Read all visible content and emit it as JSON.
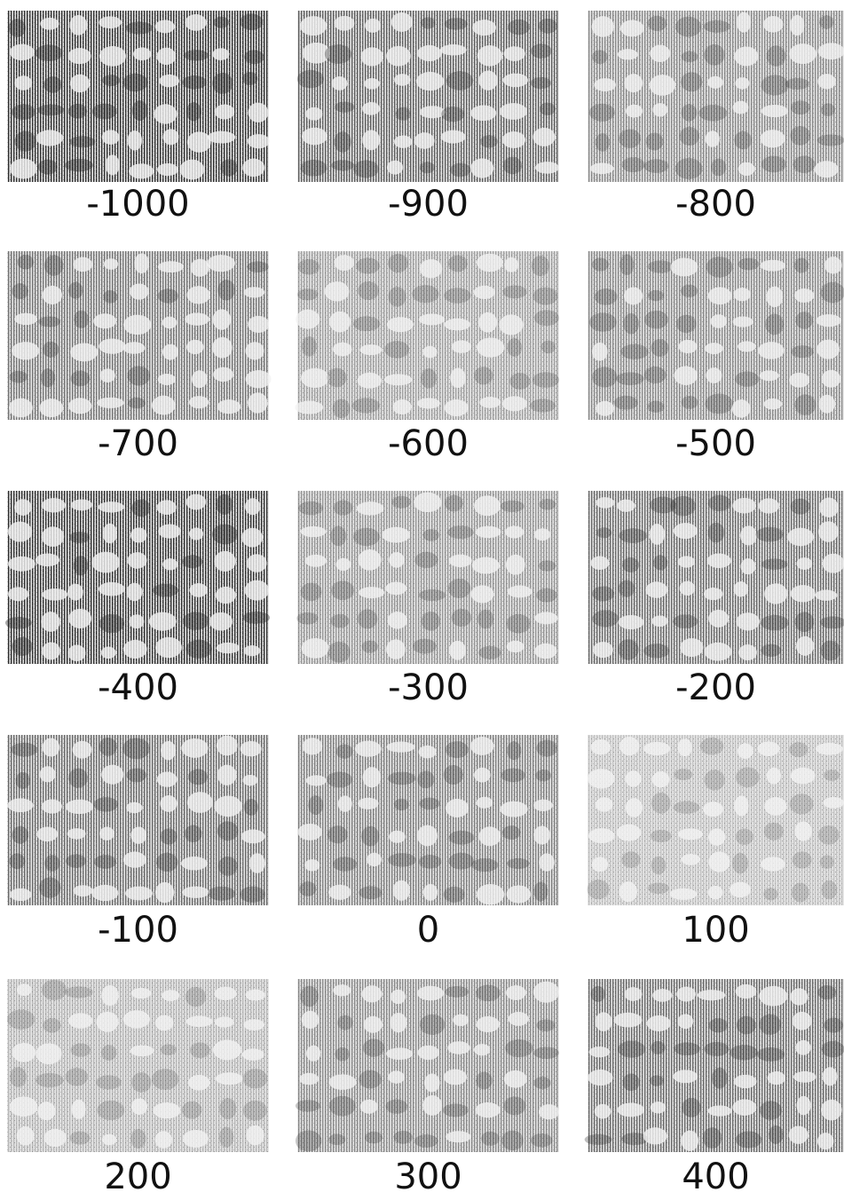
{
  "panels": [
    {
      "label": "-1000"
    },
    {
      "label": "-900"
    },
    {
      "label": "-800"
    },
    {
      "label": "-700"
    },
    {
      "label": "-600"
    },
    {
      "label": "-500"
    },
    {
      "label": "-400"
    },
    {
      "label": "-300"
    },
    {
      "label": "-200"
    },
    {
      "label": "-100"
    },
    {
      "label": "0"
    },
    {
      "label": "100"
    },
    {
      "label": "200"
    },
    {
      "label": "300"
    },
    {
      "label": "400"
    }
  ]
}
